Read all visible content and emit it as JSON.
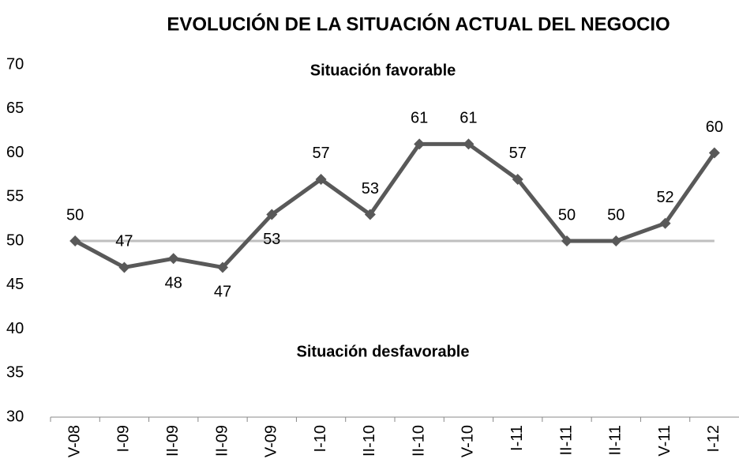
{
  "chart_data": {
    "type": "line",
    "title": "EVOLUCIÓN DE LA SITUACIÓN ACTUAL DEL NEGOCIO",
    "annotations": [
      "Situación favorable",
      "Situación desfavorable"
    ],
    "categories": [
      "V-08",
      "I-09",
      "II-09",
      "II-09",
      "V-09",
      "I-10",
      "II-10",
      "II-10",
      "V-10",
      "I-11",
      "II-11",
      "II-11",
      "V-11",
      "I-12"
    ],
    "series": [
      {
        "name": "Situación actual del negocio",
        "color": "#595959",
        "values": [
          50,
          47,
          48,
          47,
          53,
          57,
          53,
          61,
          61,
          57,
          50,
          50,
          52,
          60
        ]
      }
    ],
    "reference_line": 50,
    "reference_color": "#bfbfbf",
    "ylim": [
      30,
      70
    ],
    "yticks": [
      30,
      35,
      40,
      45,
      50,
      55,
      60,
      65,
      70
    ],
    "grid": false
  }
}
